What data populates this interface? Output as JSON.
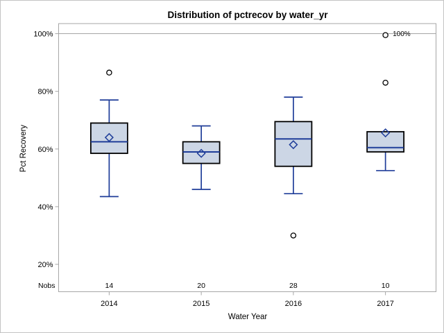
{
  "chart_data": {
    "type": "boxplot",
    "title": "Distribution of pctrecov by water_yr",
    "xlabel": "Water Year",
    "ylabel": "Pct Recovery",
    "nobs_label": "Nobs",
    "categories": [
      "2014",
      "2015",
      "2016",
      "2017"
    ],
    "nobs": [
      14,
      20,
      28,
      10
    ],
    "yticks": [
      20,
      40,
      60,
      80,
      100
    ],
    "ytick_labels": [
      "20%",
      "40%",
      "60%",
      "80%",
      "100%"
    ],
    "ylim": [
      10.5,
      103.5
    ],
    "grid": "off",
    "legend": "none",
    "reference_line": {
      "value": 100
    },
    "annotation": {
      "text": "100%",
      "category_index": 3,
      "value": 99.5
    },
    "series": [
      {
        "label": "2014",
        "n": 14,
        "whisker_low": 43.5,
        "q1": 58.5,
        "median": 62.5,
        "q3": 69,
        "whisker_high": 77,
        "mean": 64,
        "outliers": [
          86.5
        ]
      },
      {
        "label": "2015",
        "n": 20,
        "whisker_low": 46,
        "q1": 55,
        "median": 59,
        "q3": 62.5,
        "whisker_high": 68,
        "mean": 58.5,
        "outliers": []
      },
      {
        "label": "2016",
        "n": 28,
        "whisker_low": 44.5,
        "q1": 54,
        "median": 63.5,
        "q3": 69.5,
        "whisker_high": 78,
        "mean": 61.5,
        "outliers": [
          30
        ]
      },
      {
        "label": "2017",
        "n": 10,
        "whisker_low": 52.5,
        "q1": 59,
        "median": 60.5,
        "q3": 66,
        "whisker_high": 66,
        "mean": 65.6,
        "outliers": [
          83,
          99.5
        ]
      }
    ],
    "colors": {
      "box_fill": "#ccd6e5",
      "box_border": "#000000",
      "stat_line": "#1f3d99",
      "frame": "#a6a6a6",
      "outlier_stroke": "#000000",
      "text": "#000000",
      "background": "#ffffff"
    }
  }
}
